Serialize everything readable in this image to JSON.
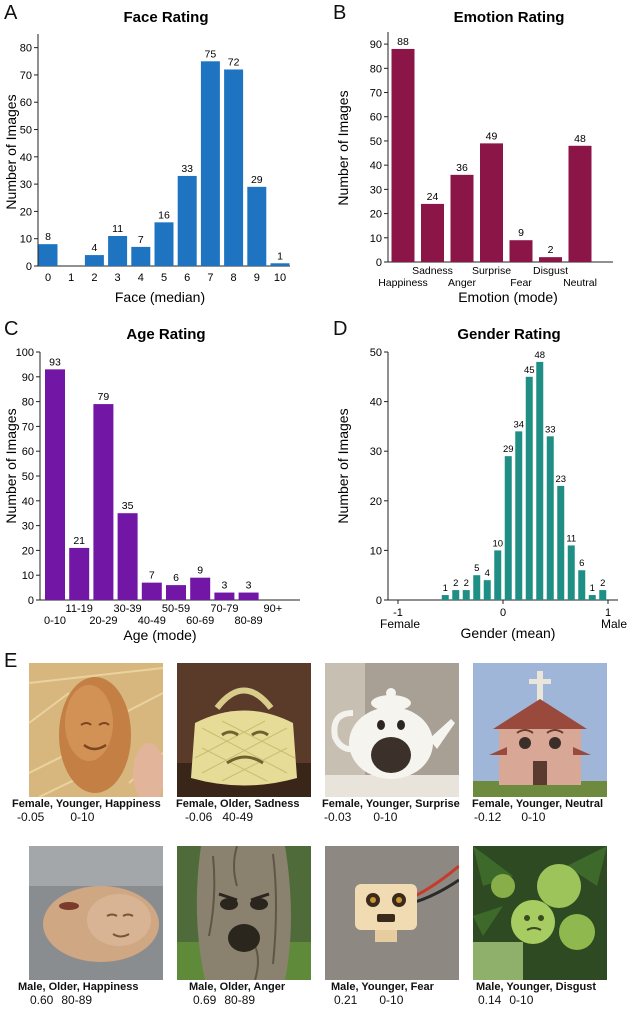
{
  "panel_labels": [
    "A",
    "B",
    "C",
    "D",
    "E"
  ],
  "chart_data": [
    {
      "type": "bar",
      "id": "face",
      "title": "Face Rating",
      "xlabel": "Face (median)",
      "ylabel": "Number of Images",
      "color": "#1f74c2",
      "categories": [
        "0",
        "1",
        "2",
        "3",
        "4",
        "5",
        "6",
        "7",
        "8",
        "9",
        "10"
      ],
      "values": [
        8,
        0,
        4,
        11,
        7,
        16,
        33,
        75,
        72,
        29,
        1
      ],
      "value_labels": [
        "8",
        "",
        "4",
        "11",
        "7",
        "16",
        "33",
        "75",
        "72",
        "29",
        "1"
      ],
      "ylim": [
        0,
        85
      ],
      "yticks": [
        "0",
        "10",
        "20",
        "30",
        "40",
        "50",
        "60",
        "70",
        "80"
      ]
    },
    {
      "type": "bar",
      "id": "emotion",
      "title": "Emotion Rating",
      "xlabel": "Emotion (mode)",
      "ylabel": "Number of Images",
      "color": "#8c1548",
      "categories": [
        "Happiness",
        "Sadness",
        "Anger",
        "Surprise",
        "Fear",
        "Disgust",
        "Neutral"
      ],
      "values": [
        88,
        24,
        36,
        49,
        9,
        2,
        48
      ],
      "value_labels": [
        "88",
        "24",
        "36",
        "49",
        "9",
        "2",
        "48"
      ],
      "ylim": [
        0,
        95
      ],
      "yticks": [
        "0",
        "10",
        "20",
        "30",
        "40",
        "50",
        "60",
        "70",
        "80",
        "90"
      ]
    },
    {
      "type": "bar",
      "id": "age",
      "title": "Age Rating",
      "xlabel": "Age (mode)",
      "ylabel": "Number of Images",
      "color": "#7216a6",
      "categories": [
        "0-10",
        "11-19",
        "20-29",
        "30-39",
        "40-49",
        "50-59",
        "60-69",
        "70-79",
        "80-89",
        "90+"
      ],
      "values": [
        93,
        21,
        79,
        35,
        7,
        6,
        9,
        3,
        3,
        0
      ],
      "value_labels": [
        "93",
        "21",
        "79",
        "35",
        "7",
        "6",
        "9",
        "3",
        "3",
        ""
      ],
      "ylim": [
        0,
        100
      ],
      "yticks": [
        "0",
        "10",
        "20",
        "30",
        "40",
        "50",
        "60",
        "70",
        "80",
        "90",
        "100"
      ]
    },
    {
      "type": "bar",
      "id": "gender",
      "title": "Gender Rating",
      "xlabel": "Gender (mean)",
      "ylabel": "Number of Images",
      "color": "#1f8f86",
      "categories": [
        "-0.9",
        "-0.8",
        "-0.7",
        "-0.6",
        "-0.5",
        "-0.4",
        "-0.3",
        "-0.2",
        "-0.1",
        "0.0",
        "0.1",
        "0.2",
        "0.3",
        "0.4",
        "0.5",
        "0.6",
        "0.7",
        "0.8",
        "0.9",
        "1.0"
      ],
      "values": [
        0,
        0,
        0,
        0,
        1,
        2,
        2,
        5,
        4,
        10,
        29,
        34,
        45,
        48,
        33,
        23,
        11,
        6,
        1,
        2
      ],
      "value_labels": [
        "",
        "",
        "",
        "",
        "1",
        "2",
        "2",
        "5",
        "4",
        "10",
        "29",
        "34",
        "45",
        "48",
        "33",
        "23",
        "11",
        "6",
        "1",
        "2"
      ],
      "xlim": [
        -1,
        1
      ],
      "xticks": [
        "-1",
        "0",
        "1"
      ],
      "xtick_notes": [
        "Female",
        "Male"
      ],
      "ylim": [
        0,
        50
      ],
      "yticks": [
        "0",
        "10",
        "20",
        "30",
        "40",
        "50"
      ]
    }
  ],
  "examples": [
    {
      "caption": "Female, Younger, Happiness",
      "gender_value": "-0.05",
      "age": "0-10",
      "thumb": "potato"
    },
    {
      "caption": "Female, Older, Sadness",
      "gender_value": "-0.06",
      "age": "40-49",
      "thumb": "handbag"
    },
    {
      "caption": "Female, Younger, Surprise",
      "gender_value": "-0.03",
      "age": "0-10",
      "thumb": "teapot"
    },
    {
      "caption": "Female, Younger, Neutral",
      "gender_value": "-0.12",
      "age": "0-10",
      "thumb": "church"
    },
    {
      "caption": "Male, Older, Happiness",
      "gender_value": "0.60",
      "age": "80-89",
      "thumb": "potato-2"
    },
    {
      "caption": "Male, Older, Anger",
      "gender_value": "0.69",
      "age": "80-89",
      "thumb": "tree"
    },
    {
      "caption": "Male, Younger, Fear",
      "gender_value": "0.21",
      "age": "0-10",
      "thumb": "connector"
    },
    {
      "caption": "Male, Younger, Disgust",
      "gender_value": "0.14",
      "age": "0-10",
      "thumb": "apples"
    }
  ]
}
